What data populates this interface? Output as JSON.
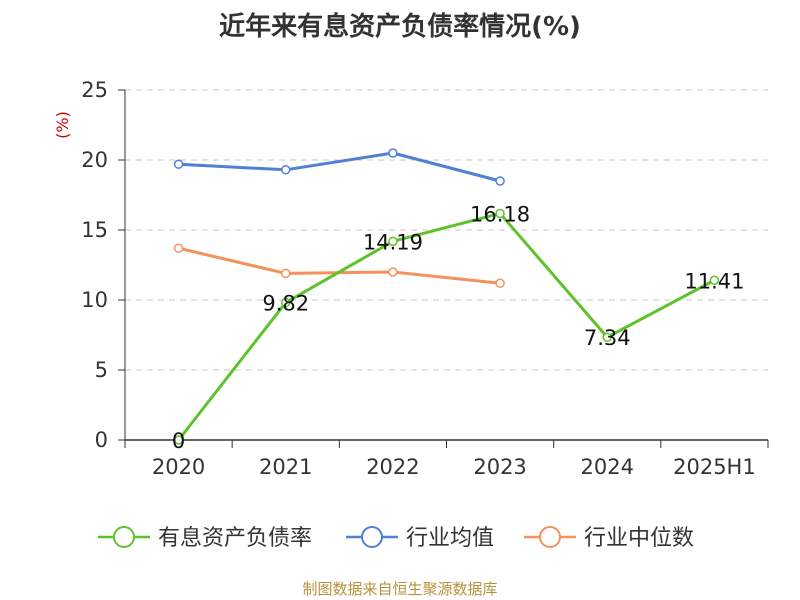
{
  "chart_data": {
    "type": "line",
    "title": "近年来有息资产负债率情况(%)",
    "ylabel": "(%)",
    "ylim": [
      0,
      25
    ],
    "yticks": [
      0,
      5,
      10,
      15,
      20,
      25
    ],
    "categories": [
      "2020",
      "2021",
      "2022",
      "2023",
      "2024",
      "2025H1"
    ],
    "grid": true,
    "legend_position": "bottom",
    "series": [
      {
        "name": "有息资产负债率",
        "color": "#5cc32b",
        "values": [
          0,
          9.82,
          14.19,
          16.18,
          7.34,
          11.41
        ],
        "labels": [
          "0",
          "9.82",
          "14.19",
          "16.18",
          "7.34",
          "11.41"
        ]
      },
      {
        "name": "行业均值",
        "color": "#4f7fd6",
        "values": [
          19.7,
          19.3,
          20.5,
          18.5,
          null,
          null
        ]
      },
      {
        "name": "行业中位数",
        "color": "#f5915c",
        "values": [
          13.7,
          11.9,
          12.0,
          11.2,
          null,
          null
        ]
      }
    ],
    "unit_color": "#cc0000"
  },
  "source": "制图数据来自恒生聚源数据库"
}
